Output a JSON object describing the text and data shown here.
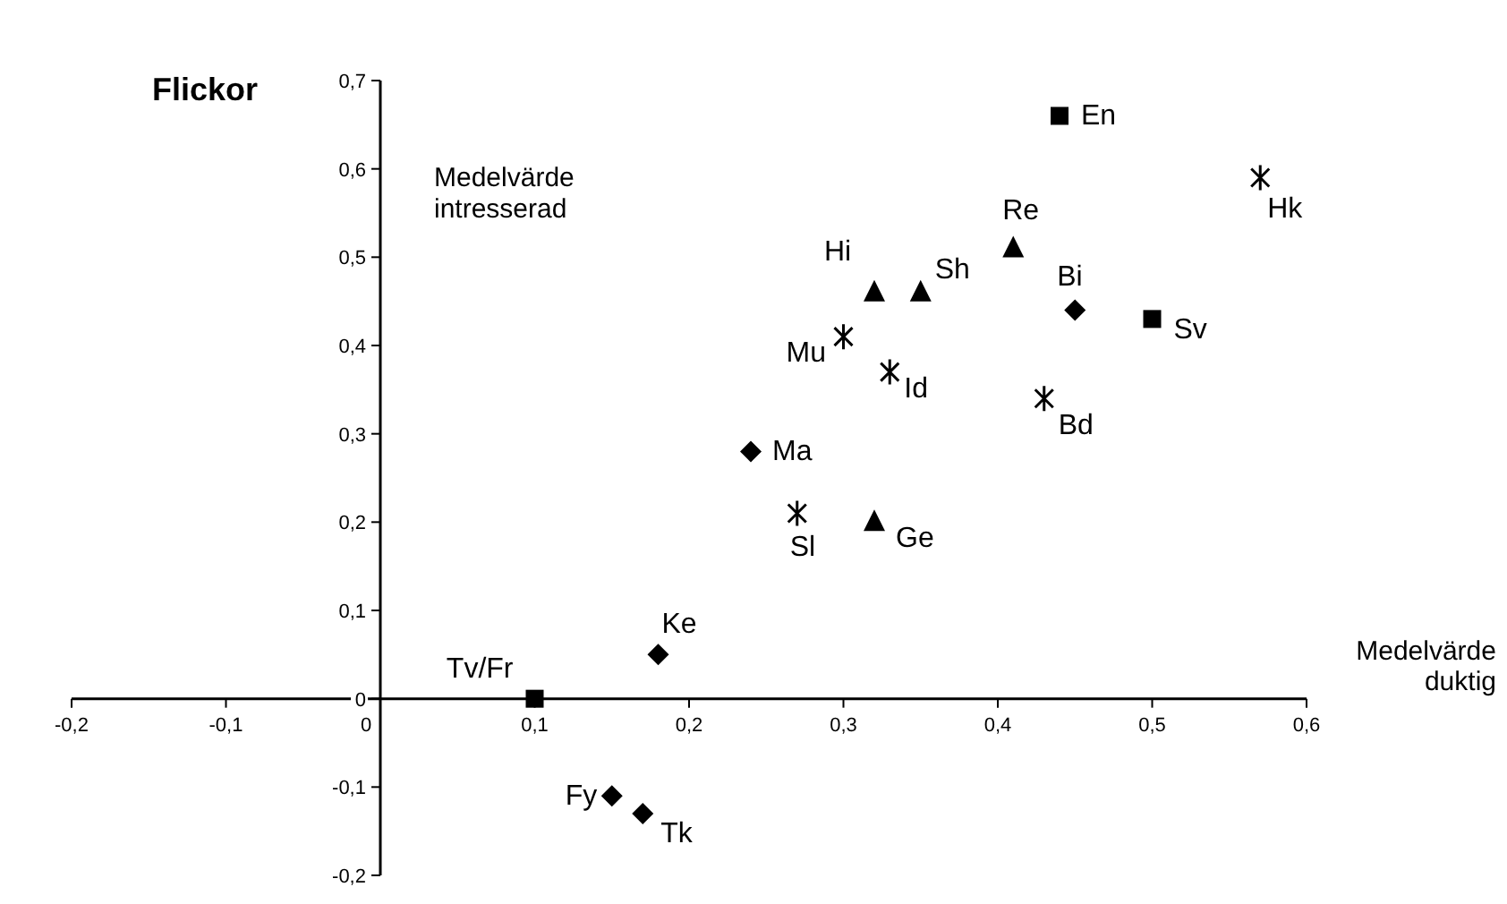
{
  "chart_data": {
    "type": "scatter",
    "title": "Flickor",
    "xlabel": "Medelvärde duktig",
    "ylabel": "Medelvärde intresserad",
    "xlim": [
      -0.2,
      0.6
    ],
    "ylim": [
      -0.2,
      0.7
    ],
    "xticks": [
      {
        "value": -0.2,
        "label": "-0,2"
      },
      {
        "value": -0.1,
        "label": "-0,1"
      },
      0,
      {
        "value": 0.1,
        "label": "0,1"
      },
      {
        "value": 0.2,
        "label": "0,2"
      },
      {
        "value": 0.3,
        "label": "0,3"
      },
      {
        "value": 0.4,
        "label": "0,4"
      },
      {
        "value": 0.5,
        "label": "0,5"
      },
      {
        "value": 0.6,
        "label": "0,6"
      }
    ],
    "yticks": [
      {
        "value": -0.2,
        "label": "-0,2"
      },
      {
        "value": -0.1,
        "label": "-0,1"
      },
      0,
      {
        "value": 0.1,
        "label": "0,1"
      },
      {
        "value": 0.2,
        "label": "0,2"
      },
      {
        "value": 0.3,
        "label": "0,3"
      },
      {
        "value": 0.4,
        "label": "0,4"
      },
      {
        "value": 0.5,
        "label": "0,5"
      },
      {
        "value": 0.6,
        "label": "0,6"
      },
      {
        "value": 0.7,
        "label": "0,7"
      }
    ],
    "grid": false,
    "series": [
      {
        "color": "#000000",
        "marker": "square",
        "x": [
          0.44,
          0.5,
          0.1
        ],
        "values": [
          0.66,
          0.43,
          0
        ]
      },
      {
        "color": "#000000",
        "marker": "diamond",
        "x": [
          0.45,
          0.24,
          0.18,
          0.15,
          0.17
        ],
        "values": [
          0.44,
          0.28,
          0.05,
          -0.11,
          -0.13
        ]
      },
      {
        "color": "#000000",
        "marker": "triangle",
        "x": [
          0.32,
          0.35,
          0.41,
          0.32
        ],
        "values": [
          0.46,
          0.46,
          0.51,
          0.2
        ]
      },
      {
        "color": "#000000",
        "marker": "cross",
        "x": [
          0.57,
          0.3,
          0.33,
          0.43,
          0.27
        ],
        "values": [
          0.59,
          0.41,
          0.37,
          0.34,
          0.21
        ]
      }
    ],
    "annotations": [
      {
        "text": "En",
        "x": 0.44,
        "y": 0.66
      },
      {
        "text": "Sv",
        "x": 0.5,
        "y": 0.43
      },
      {
        "text": "Tv/Fr",
        "x": 0.1,
        "y": 0
      },
      {
        "text": "Bi",
        "x": 0.45,
        "y": 0.44
      },
      {
        "text": "Ma",
        "x": 0.24,
        "y": 0.28
      },
      {
        "text": "Ke",
        "x": 0.18,
        "y": 0.05
      },
      {
        "text": "Fy",
        "x": 0.15,
        "y": -0.11
      },
      {
        "text": "Tk",
        "x": 0.17,
        "y": -0.13
      },
      {
        "text": "Hi",
        "x": 0.32,
        "y": 0.46
      },
      {
        "text": "Sh",
        "x": 0.35,
        "y": 0.46
      },
      {
        "text": "Re",
        "x": 0.41,
        "y": 0.51
      },
      {
        "text": "Ge",
        "x": 0.32,
        "y": 0.2
      },
      {
        "text": "Hk",
        "x": 0.57,
        "y": 0.59
      },
      {
        "text": "Mu",
        "x": 0.3,
        "y": 0.41
      },
      {
        "text": "Id",
        "x": 0.33,
        "y": 0.37
      },
      {
        "text": "Bd",
        "x": 0.43,
        "y": 0.34
      },
      {
        "text": "Sl",
        "x": 0.27,
        "y": 0.21
      }
    ]
  }
}
